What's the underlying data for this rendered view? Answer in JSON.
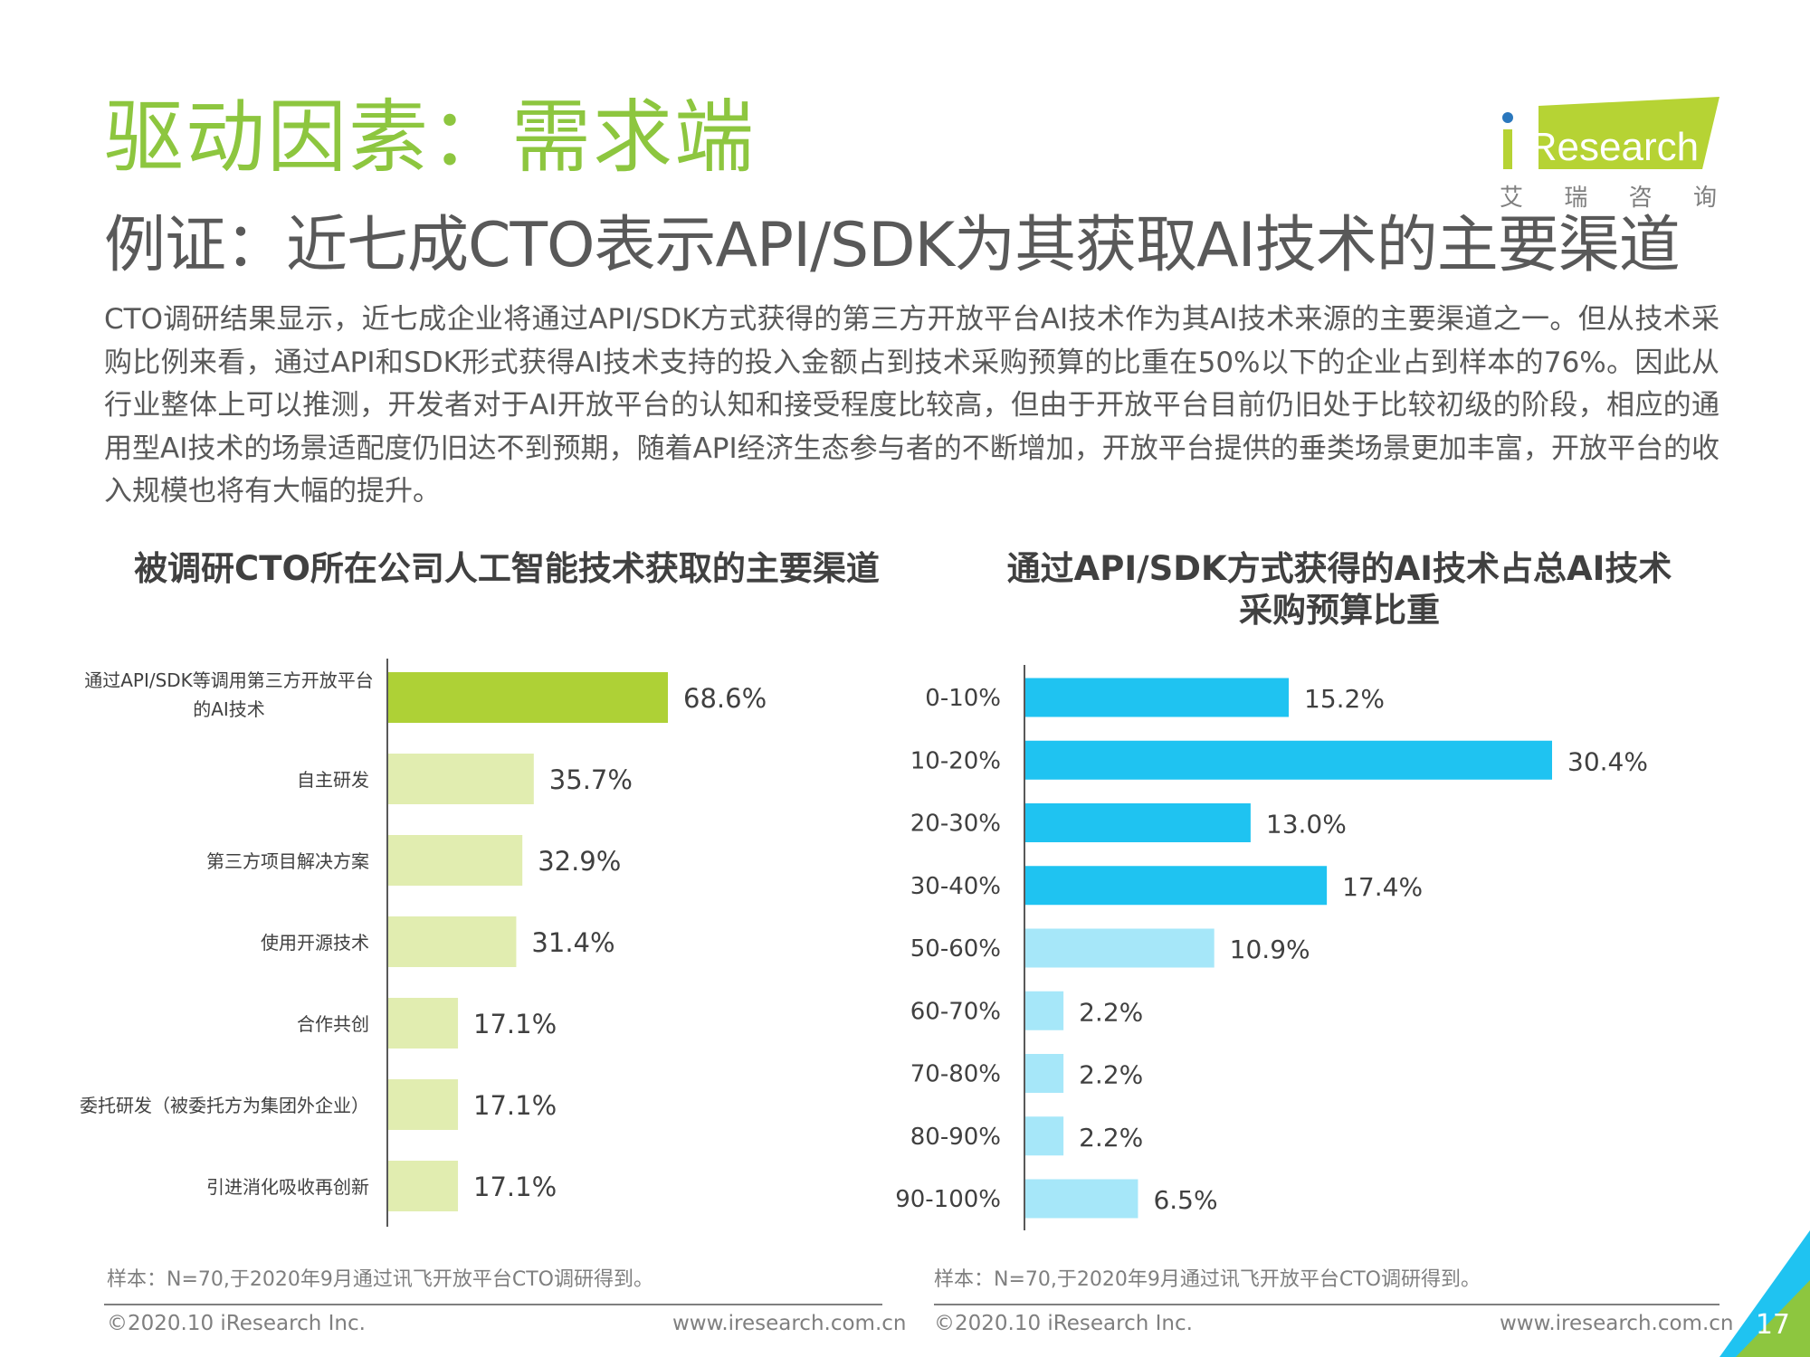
{
  "header": {
    "title": "驱动因素：需求端",
    "subtitle": "例证：近七成CTO表示API/SDK为其获取AI技术的主要渠道",
    "body": "CTO调研结果显示，近七成企业将通过API/SDK方式获得的第三方开放平台AI技术作为其AI技术来源的主要渠道之一。但从技术采购比例来看，通过API和SDK形式获得AI技术支持的投入金额占到技术采购预算的比重在50%以下的企业占到样本的76%。因此从行业整体上可以推测，开发者对于AI开放平台的认知和接受程度比较高，但由于开放平台目前仍旧处于比较初级的阶段，相应的通用型AI技术的场景适配度仍旧达不到预期，随着API经济生态参与者的不断增加，开放平台提供的垂类场景更加丰富，开放平台的收入规模也将有大幅的提升。"
  },
  "logo": {
    "brand": "iResearch",
    "chinese": "艾 瑞 咨 询"
  },
  "chart_data": [
    {
      "type": "bar",
      "orientation": "horizontal",
      "title": "被调研CTO所在公司人工智能技术获取的主要渠道",
      "categories": [
        "通过API/SDK等调用第三方开放平台的AI技术",
        "自主研发",
        "第三方项目解决方案",
        "使用开源技术",
        "合作共创",
        "委托研发（被委托方为集团外企业）",
        "引进消化吸收再创新"
      ],
      "category_lines": [
        [
          "通过API/SDK等调用第三方开放平台",
          "的AI技术"
        ],
        [
          "自主研发"
        ],
        [
          "第三方项目解决方案"
        ],
        [
          "使用开源技术"
        ],
        [
          "合作共创"
        ],
        [
          "委托研发（被委托方为集团外企业）"
        ],
        [
          "引进消化吸收再创新"
        ]
      ],
      "values": [
        68.6,
        35.7,
        32.9,
        31.4,
        17.1,
        17.1,
        17.1
      ],
      "labels": [
        "68.6%",
        "35.7%",
        "32.9%",
        "31.4%",
        "17.1%",
        "17.1%",
        "17.1%"
      ],
      "colors": [
        "#aed136",
        "#e1edb0",
        "#e1edb0",
        "#e1edb0",
        "#e1edb0",
        "#e1edb0",
        "#e1edb0"
      ],
      "unit": "%",
      "xlim": [
        0,
        100
      ]
    },
    {
      "type": "bar",
      "orientation": "horizontal",
      "title": "通过API/SDK方式获得的AI技术占总AI技术采购预算比重",
      "title_lines": [
        "通过API/SDK方式获得的AI技术占总AI技术",
        "采购预算比重"
      ],
      "categories": [
        "0-10%",
        "10-20%",
        "20-30%",
        "30-40%",
        "50-60%",
        "60-70%",
        "70-80%",
        "80-90%",
        "90-100%"
      ],
      "values": [
        15.2,
        30.4,
        13.0,
        17.4,
        10.9,
        2.2,
        2.2,
        2.2,
        6.5
      ],
      "labels": [
        "15.2%",
        "30.4%",
        "13.0%",
        "17.4%",
        "10.9%",
        "2.2%",
        "2.2%",
        "2.2%",
        "6.5%"
      ],
      "colors": [
        "#1fc3f1",
        "#1fc3f1",
        "#1fc3f1",
        "#1fc3f1",
        "#a6e7f9",
        "#a6e7f9",
        "#a6e7f9",
        "#a6e7f9",
        "#a6e7f9"
      ],
      "unit": "%",
      "xlim": [
        0,
        40
      ]
    }
  ],
  "notes": {
    "left": "样本：N=70,于2020年9月通过讯飞开放平台CTO调研得到。",
    "right": "样本：N=70,于2020年9月通过讯飞开放平台CTO调研得到。"
  },
  "footer": {
    "copyright_left": "©2020.10 iResearch Inc.",
    "url_left": "www.iresearch.com.cn",
    "copyright_right": "©2020.10 iResearch Inc.",
    "url_right": "www.iresearch.com.cn",
    "page": "17"
  },
  "colors": {
    "title_green": "#8dc63f",
    "corner_green": "#8dc63f",
    "corner_blue": "#1fc3f1"
  }
}
